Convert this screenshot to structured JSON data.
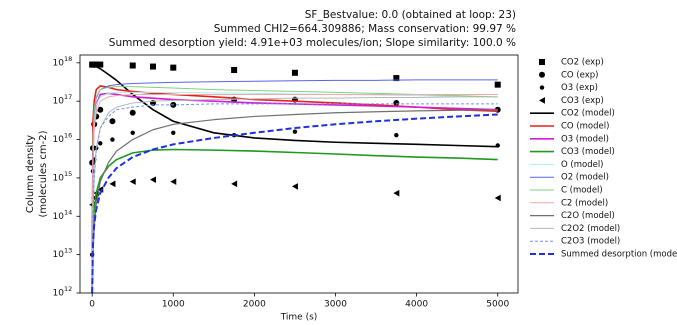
{
  "chart_data": {
    "type": "line",
    "title_lines": [
      "SF_Bestvalue: 0.0 (obtained at loop: 23)",
      "Summed CHI2=664.309886; Mass conservation: 99.97 %",
      "Summed desorption yield: 4.91e+03 molecules/ion; Slope similarity: 100.0 %"
    ],
    "xlabel": "Time (s)",
    "ylabel_lines": [
      "Column density",
      "(molecules cm-2)"
    ],
    "log_y": true,
    "xlim": [
      -150,
      5250
    ],
    "xticks": [
      0,
      1000,
      2000,
      3000,
      4000,
      5000
    ],
    "ylim": [
      1000000000000.0,
      1.6e+18
    ],
    "yticks": [
      {
        "value": 1000000000000.0,
        "label": "10",
        "exponent": "12"
      },
      {
        "value": 10000000000000.0,
        "label": "10",
        "exponent": "13"
      },
      {
        "value": 100000000000000.0,
        "label": "10",
        "exponent": "14"
      },
      {
        "value": 1000000000000000.0,
        "label": "10",
        "exponent": "15"
      },
      {
        "value": 1e+16,
        "label": "10",
        "exponent": "16"
      },
      {
        "value": 1e+17,
        "label": "10",
        "exponent": "17"
      },
      {
        "value": 1e+18,
        "label": "10",
        "exponent": "18"
      }
    ],
    "x": [
      0,
      10,
      25,
      50,
      100,
      200,
      300,
      500,
      750,
      1000,
      1500,
      2000,
      2500,
      3000,
      3500,
      4000,
      4500,
      5000
    ],
    "series": [
      {
        "name": "CO2 (exp)",
        "color": "#000000",
        "marker": "square",
        "x": [
          0,
          10,
          25,
          50,
          100,
          500,
          750,
          1000,
          1750,
          2500,
          3750,
          5000
        ],
        "values": [
          9e+17,
          9e+17,
          9e+17,
          9e+17,
          9e+17,
          8.5e+17,
          8e+17,
          7.5e+17,
          6.5e+17,
          5.5e+17,
          4e+17,
          2.7e+17
        ]
      },
      {
        "name": "CO (exp)",
        "color": "#000000",
        "marker": "circle",
        "x": [
          0,
          10,
          25,
          50,
          100,
          250,
          500,
          750,
          1000,
          1750,
          2500,
          3750,
          5000
        ],
        "values": [
          2500000000000000.0,
          6000000000000000.0,
          2.5e+16,
          4e+16,
          6e+16,
          3e+16,
          5e+16,
          9e+16,
          8e+16,
          1.1e+17,
          1.1e+17,
          9e+16,
          6e+16
        ]
      },
      {
        "name": "O3 (exp)",
        "color": "#000000",
        "marker": "dot",
        "x": [
          0,
          10,
          25,
          50,
          100,
          250,
          500,
          1000,
          1750,
          2500,
          3750,
          5000
        ],
        "values": [
          10000000000000.0,
          1500000000000000.0,
          3000000000000000.0,
          6000000000000000.0,
          8000000000000000.0,
          1e+16,
          1.5e+16,
          1.5e+16,
          1.3e+16,
          1.6e+16,
          1.3e+16,
          7000000000000000.0
        ]
      },
      {
        "name": "CO3 (exp)",
        "color": "#000000",
        "marker": "triangle",
        "x": [
          0,
          25,
          50,
          100,
          250,
          500,
          750,
          1000,
          1750,
          2500,
          3750,
          5000
        ],
        "values": [
          200000000000000.0,
          300000000000000.0,
          400000000000000.0,
          500000000000000.0,
          700000000000000.0,
          800000000000000.0,
          900000000000000.0,
          800000000000000.0,
          700000000000000.0,
          600000000000000.0,
          400000000000000.0,
          300000000000000.0
        ]
      },
      {
        "name": "CO2 (model)",
        "color": "#000000",
        "linewidth": 1.6,
        "values": [
          9e+17,
          8.8e+17,
          8.5e+17,
          8e+17,
          7e+17,
          5e+17,
          3.5e+17,
          1.5e+17,
          6e+16,
          3e+16,
          1.5e+16,
          1.1e+16,
          9500000000000000.0,
          8500000000000000.0,
          8000000000000000.0,
          7500000000000000.0,
          7000000000000000.0,
          6500000000000000.0
        ]
      },
      {
        "name": "CO (model)",
        "color": "#e8201c",
        "linewidth": 1.6,
        "values": [
          1000000000000.0,
          3e+16,
          1e+17,
          2e+17,
          2.5e+17,
          2.3e+17,
          2e+17,
          1.8e+17,
          1.6e+17,
          1.5e+17,
          1.3e+17,
          1.1e+17,
          1e+17,
          9e+16,
          8e+16,
          7e+16,
          6e+16,
          5.5e+16
        ]
      },
      {
        "name": "O3 (model)",
        "color": "#d41cd4",
        "linewidth": 1.6,
        "values": [
          1000000000000.0,
          5000000000000000.0,
          3e+16,
          8e+16,
          1.5e+17,
          1.6e+17,
          1.5e+17,
          1.3e+17,
          1.2e+17,
          1.1e+17,
          1e+17,
          9e+16,
          8.5e+16,
          8e+16,
          7.5e+16,
          7e+16,
          6.5e+16,
          6e+16
        ]
      },
      {
        "name": "CO3 (model)",
        "color": "#1f9a1f",
        "linewidth": 1.6,
        "values": [
          1000000000000.0,
          50000000000000.0,
          150000000000000.0,
          400000000000000.0,
          1000000000000000.0,
          2000000000000000.0,
          3000000000000000.0,
          4500000000000000.0,
          5300000000000000.0,
          5500000000000000.0,
          5300000000000000.0,
          5000000000000000.0,
          4600000000000000.0,
          4200000000000000.0,
          3800000000000000.0,
          3500000000000000.0,
          3300000000000000.0,
          3000000000000000.0
        ]
      },
      {
        "name": "O (model)",
        "color": "#a8eef0",
        "linewidth": 1,
        "values": [
          1000000000000.0,
          5000000000000000.0,
          3e+16,
          8e+16,
          1.3e+17,
          1.6e+17,
          1.7e+17,
          1.7e+17,
          1.7e+17,
          1.7e+17,
          1.65e+17,
          1.6e+17,
          1.55e+17,
          1.5e+17,
          1.45e+17,
          1.4e+17,
          1.35e+17,
          1.3e+17
        ]
      },
      {
        "name": "O2 (model)",
        "color": "#5a64e8",
        "linewidth": 1,
        "values": [
          1000000000000.0,
          1e+16,
          5e+16,
          1.2e+17,
          2e+17,
          2.5e+17,
          2.7e+17,
          2.9e+17,
          3e+17,
          3.1e+17,
          3.2e+17,
          3.3e+17,
          3.4e+17,
          3.5e+17,
          3.5e+17,
          3.6e+17,
          3.6e+17,
          3.6e+17
        ]
      },
      {
        "name": "C (model)",
        "color": "#80d080",
        "linewidth": 1,
        "values": [
          1000000000000.0,
          1e+16,
          6e+16,
          1.3e+17,
          2e+17,
          2.3e+17,
          2.4e+17,
          2.4e+17,
          2.3e+17,
          2.2e+17,
          2e+17,
          1.9e+17,
          1.8e+17,
          1.7e+17,
          1.6e+17,
          1.5e+17,
          1.4e+17,
          1.3e+17
        ]
      },
      {
        "name": "C2 (model)",
        "color": "#f0a8a8",
        "linewidth": 1,
        "values": [
          1000000000000.0,
          3000000000000000.0,
          2e+16,
          5e+16,
          1e+17,
          1.3e+17,
          1.4e+17,
          1.5e+17,
          1.5e+17,
          1.5e+17,
          1.5e+17,
          1.5e+17,
          1.5e+17,
          1.5e+17,
          1.5e+17,
          1.5e+17,
          1.5e+17,
          1.5e+17
        ]
      },
      {
        "name": "C2O (model)",
        "color": "#707070",
        "linewidth": 1.2,
        "values": [
          1000000000000.0,
          10000000000000.0,
          50000000000000.0,
          200000000000000.0,
          800000000000000.0,
          2500000000000000.0,
          5000000000000000.0,
          1e+16,
          1.8e+16,
          2.5e+16,
          3.3e+16,
          4e+16,
          4.5e+16,
          5e+16,
          5.3e+16,
          5.6e+16,
          5.8e+16,
          6e+16
        ]
      },
      {
        "name": "C2O2 (model)",
        "color": "#b8b8b8",
        "linewidth": 1,
        "values": [
          1000000000000.0,
          100000000000000.0,
          1000000000000000.0,
          6000000000000000.0,
          2e+16,
          5e+16,
          7e+16,
          9e+16,
          1e+17,
          1.05e+17,
          1.1e+17,
          1.15e+17,
          1.2e+17,
          1.2e+17,
          1.25e+17,
          1.25e+17,
          1.3e+17,
          1.3e+17
        ]
      },
      {
        "name": "C2O3 (model)",
        "color": "#7090f0",
        "linewidth": 1,
        "dashed": true,
        "values": [
          1000000000000.0,
          100000000000000.0,
          1000000000000000.0,
          5000000000000000.0,
          2e+16,
          4e+16,
          6e+16,
          7e+16,
          8e+16,
          8e+16,
          8.5e+16,
          8.5e+16,
          8.5e+16,
          8.5e+16,
          8.5e+16,
          8.5e+16,
          8.5e+16,
          8.5e+16
        ]
      },
      {
        "name": "Summed desorption (model)",
        "color": "#2030e0",
        "linewidth": 2,
        "dashed": true,
        "values": [
          1000000000000.0,
          20000000000000.0,
          60000000000000.0,
          150000000000000.0,
          400000000000000.0,
          1000000000000000.0,
          1800000000000000.0,
          3500000000000000.0,
          5500000000000000.0,
          7500000000000000.0,
          1.1e+16,
          1.5e+16,
          2e+16,
          2.5e+16,
          3e+16,
          3.5e+16,
          4e+16,
          4.5e+16
        ]
      }
    ]
  }
}
